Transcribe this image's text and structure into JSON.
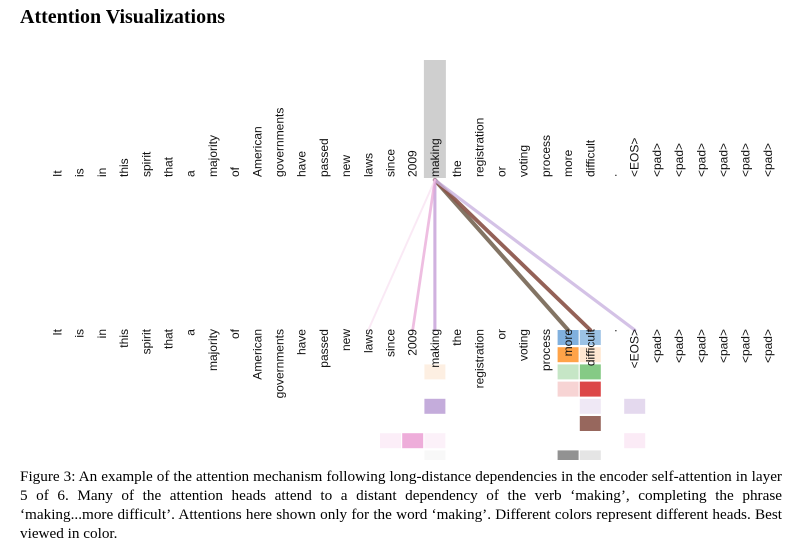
{
  "heading": "Attention Visualizations",
  "tokens": [
    "It",
    "is",
    "in",
    "this",
    "spirit",
    "that",
    "a",
    "majority",
    "of",
    "American",
    "governments",
    "have",
    "passed",
    "new",
    "laws",
    "since",
    "2009",
    "making",
    "the",
    "registration",
    "or",
    "voting",
    "process",
    "more",
    "difficult",
    ".",
    "<EOS>",
    "<pad>",
    "<pad>",
    "<pad>",
    "<pad>",
    "<pad>",
    "<pad>"
  ],
  "query_token_index": 17,
  "colors": {
    "query_highlight": "#cfcfcf",
    "head_1": "#4a8fd0",
    "head_2": "#ff8c1a",
    "head_3": "#5cb85c",
    "head_4": "#d62728",
    "head_5": "#9467bd",
    "head_6": "#8c564b",
    "head_7": "#e377c2",
    "head_8": "#7f7f7f"
  },
  "attention_links": [
    {
      "to": 23,
      "color": "#7f6f5f",
      "strength": 0.95
    },
    {
      "to": 24,
      "color": "#8c564b",
      "strength": 0.9
    },
    {
      "to": 26,
      "color": "#c9b3e0",
      "strength": 0.7
    },
    {
      "to": 17,
      "color": "#c29ad6",
      "strength": 0.65
    },
    {
      "to": 16,
      "color": "#e7a3d4",
      "strength": 0.55
    },
    {
      "to": 14,
      "color": "#f6d6ec",
      "strength": 0.3
    }
  ],
  "attention_cells": [
    {
      "col": 23,
      "row": 0,
      "color": "#4a8fd0",
      "alpha": 0.7
    },
    {
      "col": 24,
      "row": 0,
      "color": "#4a8fd0",
      "alpha": 0.55
    },
    {
      "col": 23,
      "row": 1,
      "color": "#ff8c1a",
      "alpha": 0.8
    },
    {
      "col": 24,
      "row": 1,
      "color": "#ffb066",
      "alpha": 0.3
    },
    {
      "col": 24,
      "row": 2,
      "color": "#5cb85c",
      "alpha": 0.75
    },
    {
      "col": 23,
      "row": 2,
      "color": "#5cb85c",
      "alpha": 0.35
    },
    {
      "col": 17,
      "row": 2,
      "color": "#f7c9a0",
      "alpha": 0.3
    },
    {
      "col": 23,
      "row": 3,
      "color": "#d62728",
      "alpha": 0.2
    },
    {
      "col": 24,
      "row": 3,
      "color": "#d62728",
      "alpha": 0.85
    },
    {
      "col": 17,
      "row": 4,
      "color": "#9467bd",
      "alpha": 0.55
    },
    {
      "col": 26,
      "row": 4,
      "color": "#9467bd",
      "alpha": 0.25
    },
    {
      "col": 24,
      "row": 4,
      "color": "#9467bd",
      "alpha": 0.15
    },
    {
      "col": 24,
      "row": 5,
      "color": "#8c564b",
      "alpha": 0.9
    },
    {
      "col": 16,
      "row": 6,
      "color": "#e377c2",
      "alpha": 0.6
    },
    {
      "col": 15,
      "row": 6,
      "color": "#e377c2",
      "alpha": 0.12
    },
    {
      "col": 26,
      "row": 6,
      "color": "#e377c2",
      "alpha": 0.15
    },
    {
      "col": 17,
      "row": 6,
      "color": "#e377c2",
      "alpha": 0.1
    },
    {
      "col": 23,
      "row": 7,
      "color": "#7f7f7f",
      "alpha": 0.85
    },
    {
      "col": 24,
      "row": 7,
      "color": "#7f7f7f",
      "alpha": 0.2
    },
    {
      "col": 17,
      "row": 7,
      "color": "#7f7f7f",
      "alpha": 0.05
    }
  ],
  "caption": "Figure 3: An example of the attention mechanism following long-distance dependencies in the encoder self-attention in layer 5 of 6. Many of the attention heads attend to a distant dependency of the verb ‘making’, completing the phrase ‘making...more difficult’. Attentions here shown only for the word ‘making’. Different colors represent different heads. Best viewed in color."
}
